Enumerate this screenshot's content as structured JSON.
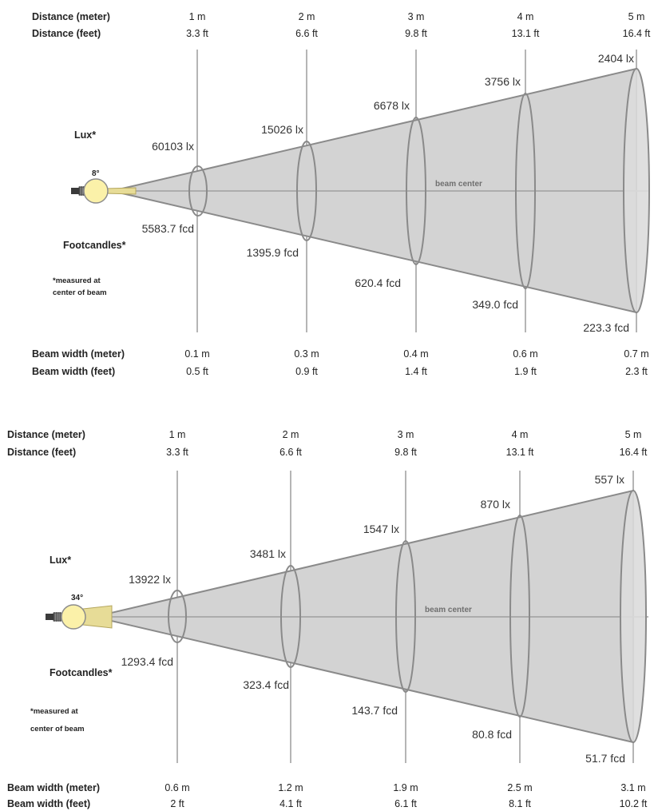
{
  "diagrams": [
    {
      "beam_angle": "8°",
      "row_labels": {
        "distance_m": "Distance (meter)",
        "distance_ft": "Distance (feet)",
        "lux": "Lux*",
        "footcandles": "Footcandles*",
        "note_line1": "*measured at",
        "note_line2": "center of beam",
        "beam_width_m": "Beam width (meter)",
        "beam_width_ft": "Beam width (feet)",
        "beam_center": "beam center"
      },
      "columns": [
        {
          "distance_m": "1 m",
          "distance_ft": "3.3 ft",
          "lux": "60103 lx",
          "fcd": "5583.7 fcd",
          "beam_width_m": "0.1 m",
          "beam_width_ft": "0.5 ft"
        },
        {
          "distance_m": "2 m",
          "distance_ft": "6.6 ft",
          "lux": "15026 lx",
          "fcd": "1395.9 fcd",
          "beam_width_m": "0.3 m",
          "beam_width_ft": "0.9 ft"
        },
        {
          "distance_m": "3 m",
          "distance_ft": "9.8 ft",
          "lux": "6678 lx",
          "fcd": "620.4 fcd",
          "beam_width_m": "0.4 m",
          "beam_width_ft": "1.4 ft"
        },
        {
          "distance_m": "4 m",
          "distance_ft": "13.1 ft",
          "lux": "3756 lx",
          "fcd": "349.0 fcd",
          "beam_width_m": "0.6 m",
          "beam_width_ft": "1.9 ft"
        },
        {
          "distance_m": "5 m",
          "distance_ft": "16.4 ft",
          "lux": "2404 lx",
          "fcd": "223.3 fcd",
          "beam_width_m": "0.7 m",
          "beam_width_ft": "2.3 ft"
        }
      ]
    },
    {
      "beam_angle": "34°",
      "row_labels": {
        "distance_m": "Distance (meter)",
        "distance_ft": "Distance (feet)",
        "lux": "Lux*",
        "footcandles": "Footcandles*",
        "note_line1": "*measured at",
        "note_line2": "center of beam",
        "beam_width_m": "Beam width (meter)",
        "beam_width_ft": "Beam width (feet)",
        "beam_center": "beam center"
      },
      "columns": [
        {
          "distance_m": "1 m",
          "distance_ft": "3.3 ft",
          "lux": "13922 lx",
          "fcd": "1293.4 fcd",
          "beam_width_m": "0.6 m",
          "beam_width_ft": "2 ft"
        },
        {
          "distance_m": "2 m",
          "distance_ft": "6.6 ft",
          "lux": "3481 lx",
          "fcd": "323.4 fcd",
          "beam_width_m": "1.2 m",
          "beam_width_ft": "4.1 ft"
        },
        {
          "distance_m": "3 m",
          "distance_ft": "9.8 ft",
          "lux": "1547 lx",
          "fcd": "143.7 fcd",
          "beam_width_m": "1.9 m",
          "beam_width_ft": "6.1 ft"
        },
        {
          "distance_m": "4 m",
          "distance_ft": "13.1 ft",
          "lux": "870 lx",
          "fcd": "80.8 fcd",
          "beam_width_m": "2.5 m",
          "beam_width_ft": "8.1 ft"
        },
        {
          "distance_m": "5 m",
          "distance_ft": "16.4 ft",
          "lux": "557 lx",
          "fcd": "51.7 fcd",
          "beam_width_m": "3.1 m",
          "beam_width_ft": "10.2 ft"
        }
      ]
    }
  ],
  "colors": {
    "beam_fill": "#d3d3d3",
    "beam_stroke": "#8a8a8a",
    "ellipse_fill": "#dcdcdc",
    "guide_line": "#b5b5b5",
    "bulb_fill": "#fbf1a9",
    "bulb_stroke": "#8c8c8c",
    "cone_fill": "#e7dc97",
    "text": "#222222"
  }
}
